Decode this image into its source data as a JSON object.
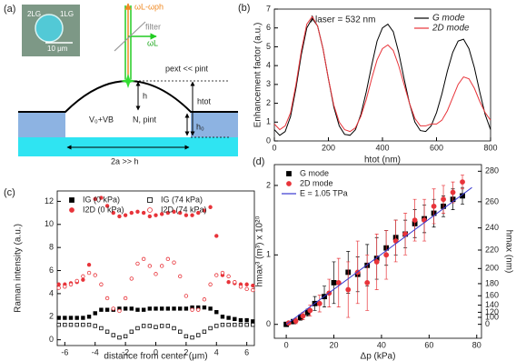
{
  "diagram": {
    "panel_label": "(a)",
    "inset_left": "2LG",
    "inset_right": "1LG",
    "scale_bar": "10 μm",
    "filter": "filter",
    "scattered": "ωL-ωph",
    "laser": "ωL",
    "pressure": "pext << pint",
    "h": "h",
    "h_tot": "htot",
    "volume": "V₀+VB",
    "gas": "N, pint",
    "h0": "h₀",
    "width": "2a >> h"
  },
  "chart_data": [
    {
      "type": "line",
      "panel_label": "(b)",
      "x_label": "htot (nm)",
      "y_label": "Enhancement factor (a.u.)",
      "annotation": "λlaser = 532 nm",
      "xlim": [
        0,
        800
      ],
      "ylim": [
        0,
        7
      ],
      "xticks": [
        0,
        200,
        400,
        600,
        800
      ],
      "yticks": [
        0,
        1,
        2,
        3,
        4,
        5,
        6,
        7
      ],
      "legend": "upper right",
      "x": [
        0,
        20,
        40,
        60,
        80,
        100,
        120,
        140,
        160,
        180,
        200,
        220,
        240,
        260,
        280,
        300,
        320,
        340,
        360,
        380,
        400,
        420,
        440,
        460,
        480,
        500,
        520,
        540,
        560,
        580,
        600,
        620,
        640,
        660,
        680,
        700,
        720,
        740,
        760,
        780,
        800
      ],
      "series": [
        {
          "name": "G mode",
          "color": "#000000",
          "values": [
            0.6,
            0.3,
            0.5,
            1.3,
            2.8,
            4.6,
            6.0,
            6.5,
            6.1,
            4.9,
            3.3,
            1.8,
            0.8,
            0.35,
            0.3,
            0.6,
            1.4,
            2.6,
            4.0,
            5.3,
            6.0,
            6.2,
            5.8,
            4.7,
            3.3,
            2.0,
            1.0,
            0.55,
            0.5,
            0.8,
            1.5,
            2.5,
            3.7,
            4.7,
            5.3,
            5.4,
            4.9,
            3.9,
            2.6,
            1.4,
            0.6
          ]
        },
        {
          "name": "2D mode",
          "color": "#e8343a",
          "values": [
            0.9,
            0.6,
            0.8,
            1.5,
            3.0,
            4.8,
            6.2,
            6.6,
            6.1,
            4.9,
            3.3,
            1.9,
            1.0,
            0.6,
            0.5,
            0.7,
            1.3,
            2.2,
            3.3,
            4.3,
            4.9,
            5.1,
            4.8,
            4.0,
            3.0,
            2.0,
            1.2,
            0.8,
            0.8,
            0.9,
            0.9,
            1.1,
            1.6,
            2.3,
            3.0,
            3.4,
            3.3,
            2.8,
            2.1,
            1.5,
            1.1
          ]
        }
      ]
    },
    {
      "type": "scatter",
      "panel_label": "(c)",
      "x_label": "distance from center (μm)",
      "y_label": "Raman intensity (a.u.)",
      "xlim": [
        -6.5,
        6.5
      ],
      "ylim": [
        -0.5,
        12.9
      ],
      "xticks": [
        -6,
        -4,
        -2,
        0,
        2,
        4,
        6
      ],
      "yticks": [
        0,
        2,
        4,
        6,
        8,
        10,
        12
      ],
      "legend": "upper left",
      "legend_columns": 2,
      "x": [
        -6.4,
        -6,
        -5.6,
        -5.2,
        -4.8,
        -4.4,
        -4,
        -3.6,
        -3.2,
        -2.8,
        -2.4,
        -2,
        -1.6,
        -1.2,
        -0.8,
        -0.4,
        0,
        0.4,
        0.8,
        1.2,
        1.6,
        2,
        2.4,
        2.8,
        3.2,
        3.6,
        4,
        4.4,
        4.8,
        5.2,
        5.6,
        6,
        6.4
      ],
      "series": [
        {
          "name": "IG (0 kPa)",
          "color": "#000000",
          "marker": "square",
          "filled": true,
          "values": [
            1.9,
            1.9,
            1.9,
            1.9,
            1.9,
            2.0,
            2.3,
            2.6,
            2.6,
            2.6,
            2.7,
            2.7,
            2.7,
            2.6,
            2.6,
            2.7,
            2.7,
            2.7,
            2.7,
            2.7,
            2.7,
            2.7,
            2.8,
            2.8,
            2.8,
            2.7,
            2.4,
            2.0,
            1.9,
            1.8,
            1.7,
            1.7,
            1.6
          ]
        },
        {
          "name": "IG (74 kPa)",
          "color": "#000000",
          "marker": "square",
          "filled": false,
          "values": [
            1.3,
            1.3,
            1.3,
            1.3,
            1.3,
            1.3,
            1.2,
            1.0,
            0.7,
            0.4,
            0.2,
            0.3,
            0.7,
            1.0,
            1.2,
            1.2,
            1.1,
            1.2,
            1.2,
            1.0,
            0.7,
            0.3,
            0.2,
            0.4,
            0.7,
            1.0,
            1.2,
            1.3,
            1.3,
            1.3,
            1.3,
            1.3,
            1.3
          ]
        },
        {
          "name": "I2D (0 kPa)",
          "color": "#e8343a",
          "marker": "circle",
          "filled": true,
          "values": [
            4.8,
            4.8,
            4.9,
            5.0,
            5.2,
            6.5,
            12.2,
            12.3,
            11.6,
            11.0,
            10.7,
            10.8,
            11.0,
            11.1,
            11.0,
            10.7,
            10.8,
            10.9,
            11.0,
            11.1,
            11.0,
            10.8,
            10.8,
            11.0,
            11.2,
            11.5,
            9.0,
            5.6,
            5.0,
            4.9,
            4.8,
            4.8,
            4.7
          ]
        },
        {
          "name": "I2D (74 kPa)",
          "color": "#e8343a",
          "marker": "circle",
          "filled": false,
          "values": [
            4.5,
            4.6,
            4.8,
            5.1,
            5.5,
            5.8,
            5.6,
            4.8,
            3.6,
            2.7,
            2.5,
            3.6,
            5.3,
            6.6,
            7.0,
            6.4,
            5.7,
            6.4,
            7.0,
            6.7,
            5.5,
            3.8,
            2.6,
            2.6,
            3.5,
            4.8,
            5.6,
            5.8,
            5.5,
            5.0,
            4.6,
            4.4,
            4.3
          ]
        }
      ]
    },
    {
      "type": "scatter",
      "panel_label": "(d)",
      "x_label": "Δp (kPa)",
      "y_label": "hmax³ (m³) x 10²⁰",
      "y2_label": "hmax (nm)",
      "xlim": [
        -5,
        82
      ],
      "ylim": [
        -0.2,
        2.3
      ],
      "xticks": [
        0,
        20,
        40,
        60,
        80
      ],
      "yticks": [
        0,
        1,
        2
      ],
      "y2lim": [
        -126,
        284
      ],
      "y2scale": "cube",
      "y2ticks": [
        0,
        100,
        120,
        140,
        160,
        180,
        200,
        220,
        240,
        260,
        280
      ],
      "legend": "upper left",
      "series": [
        {
          "name": "G mode",
          "color": "#000000",
          "marker": "square",
          "filled": true,
          "x": [
            0,
            3,
            6,
            9,
            12,
            16,
            20,
            26,
            30,
            34,
            38,
            42,
            46,
            50,
            54,
            58,
            62,
            66,
            70,
            74
          ],
          "values": [
            0,
            0.04,
            0.1,
            0.17,
            0.3,
            0.4,
            0.6,
            0.75,
            0.72,
            0.85,
            0.95,
            1.1,
            1.25,
            1.3,
            1.45,
            1.52,
            1.6,
            1.7,
            1.8,
            1.85
          ],
          "errors": [
            0.02,
            0.03,
            0.04,
            0.05,
            0.1,
            0.15,
            0.3,
            0.3,
            0.25,
            0.3,
            0.3,
            0.25,
            0.25,
            0.2,
            0.2,
            0.2,
            0.2,
            0.15,
            0.15,
            0.12
          ]
        },
        {
          "name": "2D mode",
          "color": "#e8343a",
          "marker": "circle",
          "filled": true,
          "x": [
            1,
            4,
            7,
            10,
            14,
            18,
            22,
            26,
            30,
            34,
            38,
            42,
            46,
            50,
            54,
            58,
            62,
            66,
            70,
            74
          ],
          "values": [
            0.02,
            0.05,
            0.12,
            0.2,
            0.3,
            0.45,
            0.6,
            0.5,
            0.75,
            0.6,
            0.9,
            1.0,
            1.2,
            1.3,
            1.5,
            1.5,
            1.7,
            1.8,
            1.9,
            2.05
          ],
          "errors": [
            0.02,
            0.04,
            0.05,
            0.08,
            0.12,
            0.2,
            0.35,
            0.4,
            0.45,
            0.4,
            0.4,
            0.35,
            0.3,
            0.3,
            0.3,
            0.3,
            0.25,
            0.2,
            0.15,
            0.1
          ]
        },
        {
          "name": "E = 1.05 TPa",
          "color": "#3a3ad0",
          "mode": "line",
          "x": [
            0,
            78
          ],
          "values": [
            0,
            1.97
          ]
        }
      ]
    }
  ]
}
